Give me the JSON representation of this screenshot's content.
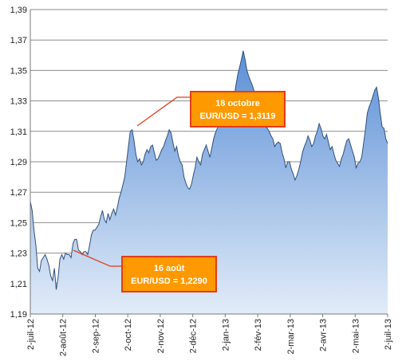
{
  "chart_data": {
    "type": "area",
    "ylim": [
      1.19,
      1.39
    ],
    "yticks": [
      "1,19",
      "1,21",
      "1,23",
      "1,25",
      "1,27",
      "1,29",
      "1,31",
      "1,33",
      "1,35",
      "1,37",
      "1,39"
    ],
    "xticks": [
      "2-juil-12",
      "2-août-12",
      "2-sep-12",
      "2-oct-12",
      "2-nov-12",
      "2-déc-12",
      "2-jan-13",
      "2-fév-13",
      "2-mar-13",
      "2-avr-13",
      "2-mai-13",
      "2-juil-13"
    ],
    "grid": true,
    "series": [
      {
        "values": [
          1.264,
          1.258,
          1.245,
          1.235,
          1.22,
          1.218,
          1.225,
          1.227,
          1.229,
          1.226,
          1.222,
          1.215,
          1.212,
          1.22,
          1.206,
          1.214,
          1.226,
          1.229,
          1.226,
          1.23,
          1.229,
          1.229,
          1.227,
          1.236,
          1.239,
          1.239,
          1.232,
          1.231,
          1.229,
          1.231,
          1.231,
          1.229,
          1.235,
          1.242,
          1.245,
          1.245,
          1.247,
          1.249,
          1.254,
          1.258,
          1.252,
          1.25,
          1.256,
          1.252,
          1.256,
          1.259,
          1.255,
          1.26,
          1.266,
          1.27,
          1.275,
          1.28,
          1.29,
          1.3,
          1.31,
          1.311,
          1.304,
          1.295,
          1.29,
          1.292,
          1.288,
          1.29,
          1.295,
          1.298,
          1.296,
          1.3,
          1.301,
          1.296,
          1.291,
          1.292,
          1.295,
          1.298,
          1.3,
          1.304,
          1.307,
          1.311,
          1.309,
          1.303,
          1.297,
          1.3,
          1.294,
          1.29,
          1.288,
          1.28,
          1.276,
          1.273,
          1.272,
          1.275,
          1.281,
          1.286,
          1.293,
          1.29,
          1.288,
          1.295,
          1.298,
          1.301,
          1.297,
          1.293,
          1.299,
          1.305,
          1.309,
          1.312,
          1.315,
          1.317,
          1.318,
          1.32,
          1.321,
          1.323,
          1.326,
          1.33,
          1.331,
          1.34,
          1.347,
          1.352,
          1.357,
          1.363,
          1.357,
          1.35,
          1.346,
          1.343,
          1.34,
          1.336,
          1.332,
          1.33,
          1.327,
          1.322,
          1.318,
          1.313,
          1.312,
          1.31,
          1.307,
          1.305,
          1.3,
          1.302,
          1.303,
          1.302,
          1.296,
          1.292,
          1.286,
          1.29,
          1.29,
          1.285,
          1.282,
          1.278,
          1.281,
          1.285,
          1.29,
          1.296,
          1.3,
          1.303,
          1.307,
          1.304,
          1.3,
          1.302,
          1.307,
          1.31,
          1.315,
          1.312,
          1.307,
          1.305,
          1.308,
          1.303,
          1.298,
          1.3,
          1.295,
          1.291,
          1.289,
          1.287,
          1.292,
          1.295,
          1.3,
          1.304,
          1.305,
          1.301,
          1.297,
          1.293,
          1.286,
          1.289,
          1.29,
          1.293,
          1.302,
          1.311,
          1.322,
          1.326,
          1.329,
          1.333,
          1.337,
          1.339,
          1.332,
          1.322,
          1.313,
          1.312,
          1.305,
          1.302
        ]
      }
    ],
    "annotations": [
      {
        "line1": "18 octobre",
        "line2": "EUR/USD = 1,3119"
      },
      {
        "line1": "16 août",
        "line2": "EUR/USD = 1,2290"
      }
    ],
    "colors": {
      "fill_top": "#5b8fd6",
      "fill_bottom": "#e2ecf8",
      "line": "#2f4f7a",
      "grid": "#8c8c8c",
      "callout_bg": "#ff9900",
      "callout_border": "#e23d17",
      "leader": "#e23d17"
    }
  }
}
